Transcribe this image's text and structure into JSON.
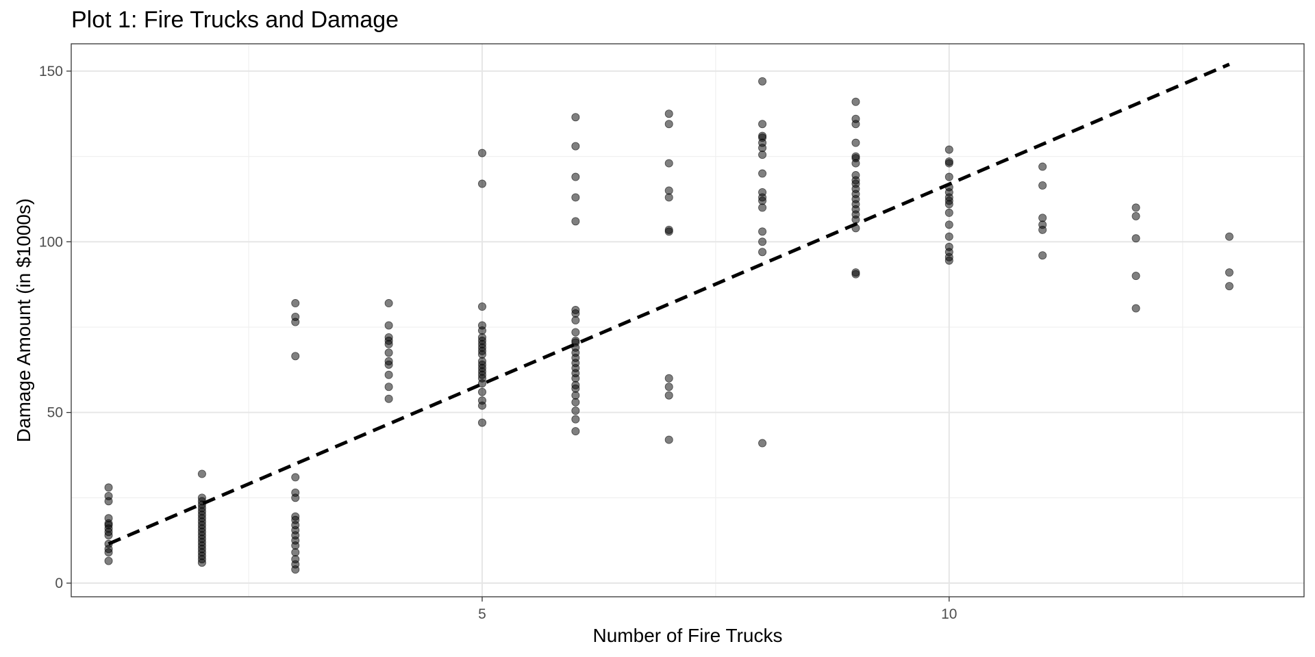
{
  "chart_data": {
    "type": "scatter",
    "title": "Plot 1: Fire Trucks and Damage",
    "xlabel": "Number of Fire Trucks",
    "ylabel": "Damage Amount (in $1000s)",
    "xlim": [
      0.6,
      13.8
    ],
    "ylim": [
      -4,
      158
    ],
    "x_ticks": [
      5,
      10
    ],
    "y_ticks": [
      0,
      50,
      100,
      150
    ],
    "x_minor_gridlines": [
      2.5,
      7.5,
      12.5
    ],
    "y_minor_gridlines": [
      25,
      75,
      125
    ],
    "grid": true,
    "legend": "none",
    "point_color": "#000000",
    "point_opacity": 0.5,
    "trend_line": {
      "style": "dashed",
      "color": "#000000",
      "points": [
        [
          1,
          11.5
        ],
        [
          13,
          152
        ]
      ]
    },
    "points": [
      [
        1,
        6.5
      ],
      [
        1,
        9
      ],
      [
        1,
        10
      ],
      [
        1,
        11.5
      ],
      [
        1,
        14
      ],
      [
        1,
        15
      ],
      [
        1,
        16
      ],
      [
        1,
        17
      ],
      [
        1,
        17.5
      ],
      [
        1,
        19
      ],
      [
        1,
        24
      ],
      [
        1,
        25.5
      ],
      [
        1,
        28
      ],
      [
        2,
        6
      ],
      [
        2,
        7
      ],
      [
        2,
        8
      ],
      [
        2,
        9
      ],
      [
        2,
        10
      ],
      [
        2,
        11
      ],
      [
        2,
        12
      ],
      [
        2,
        13
      ],
      [
        2,
        14
      ],
      [
        2,
        15
      ],
      [
        2,
        16
      ],
      [
        2,
        17
      ],
      [
        2,
        18
      ],
      [
        2,
        19
      ],
      [
        2,
        20
      ],
      [
        2,
        21
      ],
      [
        2,
        22
      ],
      [
        2,
        23
      ],
      [
        2,
        24
      ],
      [
        2,
        25
      ],
      [
        2,
        32
      ],
      [
        3,
        4
      ],
      [
        3,
        5.5
      ],
      [
        3,
        7
      ],
      [
        3,
        9
      ],
      [
        3,
        11
      ],
      [
        3,
        12.5
      ],
      [
        3,
        14
      ],
      [
        3,
        15.5
      ],
      [
        3,
        17
      ],
      [
        3,
        18.5
      ],
      [
        3,
        19.5
      ],
      [
        3,
        25
      ],
      [
        3,
        26.5
      ],
      [
        3,
        31
      ],
      [
        3,
        66.5
      ],
      [
        3,
        76.5
      ],
      [
        3,
        78
      ],
      [
        3,
        82
      ],
      [
        4,
        54
      ],
      [
        4,
        57.5
      ],
      [
        4,
        61
      ],
      [
        4,
        64
      ],
      [
        4,
        65
      ],
      [
        4,
        67.5
      ],
      [
        4,
        70
      ],
      [
        4,
        71
      ],
      [
        4,
        72
      ],
      [
        4,
        75.5
      ],
      [
        4,
        82
      ],
      [
        5,
        47
      ],
      [
        5,
        52
      ],
      [
        5,
        53.5
      ],
      [
        5,
        56
      ],
      [
        5,
        58.5
      ],
      [
        5,
        60
      ],
      [
        5,
        61
      ],
      [
        5,
        62
      ],
      [
        5,
        63
      ],
      [
        5,
        64
      ],
      [
        5,
        65
      ],
      [
        5,
        67
      ],
      [
        5,
        68
      ],
      [
        5,
        69
      ],
      [
        5,
        70
      ],
      [
        5,
        71
      ],
      [
        5,
        72
      ],
      [
        5,
        74
      ],
      [
        5,
        75.5
      ],
      [
        5,
        81
      ],
      [
        5,
        117
      ],
      [
        5,
        126
      ],
      [
        6,
        44.5
      ],
      [
        6,
        48
      ],
      [
        6,
        50.5
      ],
      [
        6,
        53
      ],
      [
        6,
        55
      ],
      [
        6,
        57
      ],
      [
        6,
        58
      ],
      [
        6,
        60
      ],
      [
        6,
        61.5
      ],
      [
        6,
        63
      ],
      [
        6,
        64.5
      ],
      [
        6,
        66
      ],
      [
        6,
        67.5
      ],
      [
        6,
        69
      ],
      [
        6,
        70.5
      ],
      [
        6,
        71
      ],
      [
        6,
        73.5
      ],
      [
        6,
        77
      ],
      [
        6,
        79
      ],
      [
        6,
        80
      ],
      [
        6,
        106
      ],
      [
        6,
        113
      ],
      [
        6,
        119
      ],
      [
        6,
        128
      ],
      [
        6,
        136.5
      ],
      [
        7,
        42
      ],
      [
        7,
        55
      ],
      [
        7,
        57.5
      ],
      [
        7,
        60
      ],
      [
        7,
        103
      ],
      [
        7,
        103.5
      ],
      [
        7,
        113
      ],
      [
        7,
        115
      ],
      [
        7,
        123
      ],
      [
        7,
        134.5
      ],
      [
        7,
        137.5
      ],
      [
        8,
        41
      ],
      [
        8,
        97
      ],
      [
        8,
        100
      ],
      [
        8,
        103
      ],
      [
        8,
        110
      ],
      [
        8,
        112
      ],
      [
        8,
        113
      ],
      [
        8,
        114.5
      ],
      [
        8,
        120
      ],
      [
        8,
        125.5
      ],
      [
        8,
        127.5
      ],
      [
        8,
        129
      ],
      [
        8,
        130.5
      ],
      [
        8,
        131
      ],
      [
        8,
        134.5
      ],
      [
        8,
        147
      ],
      [
        9,
        90.5
      ],
      [
        9,
        91
      ],
      [
        9,
        104
      ],
      [
        9,
        106.5
      ],
      [
        9,
        108
      ],
      [
        9,
        109.5
      ],
      [
        9,
        111
      ],
      [
        9,
        112.5
      ],
      [
        9,
        114
      ],
      [
        9,
        115.5
      ],
      [
        9,
        117
      ],
      [
        9,
        118
      ],
      [
        9,
        119.5
      ],
      [
        9,
        123
      ],
      [
        9,
        124.5
      ],
      [
        9,
        125
      ],
      [
        9,
        129
      ],
      [
        9,
        134.5
      ],
      [
        9,
        136
      ],
      [
        9,
        141
      ],
      [
        10,
        94.5
      ],
      [
        10,
        95.5
      ],
      [
        10,
        97
      ],
      [
        10,
        98.5
      ],
      [
        10,
        101.5
      ],
      [
        10,
        105
      ],
      [
        10,
        108.5
      ],
      [
        10,
        111
      ],
      [
        10,
        112
      ],
      [
        10,
        113
      ],
      [
        10,
        114.5
      ],
      [
        10,
        116
      ],
      [
        10,
        119
      ],
      [
        10,
        123
      ],
      [
        10,
        123.5
      ],
      [
        10,
        127
      ],
      [
        11,
        96
      ],
      [
        11,
        103.5
      ],
      [
        11,
        105
      ],
      [
        11,
        107
      ],
      [
        11,
        116.5
      ],
      [
        11,
        122
      ],
      [
        12,
        80.5
      ],
      [
        12,
        90
      ],
      [
        12,
        101
      ],
      [
        12,
        107.5
      ],
      [
        12,
        110
      ],
      [
        13,
        87
      ],
      [
        13,
        91
      ],
      [
        13,
        101.5
      ]
    ]
  }
}
